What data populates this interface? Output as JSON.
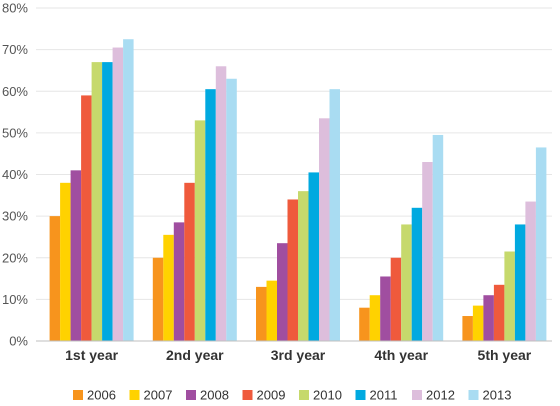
{
  "chart_data": {
    "type": "bar",
    "title": "",
    "xlabel": "",
    "ylabel": "",
    "categories": [
      "1st year",
      "2nd year",
      "3rd year",
      "4th year",
      "5th year"
    ],
    "series": [
      {
        "name": "2006",
        "color": "#f7941d",
        "values": [
          30,
          20,
          13,
          8,
          6
        ]
      },
      {
        "name": "2007",
        "color": "#ffd200",
        "values": [
          38,
          25.5,
          14.5,
          11,
          8.5
        ]
      },
      {
        "name": "2008",
        "color": "#a04ea0",
        "values": [
          41,
          28.5,
          23.5,
          15.5,
          11
        ]
      },
      {
        "name": "2009",
        "color": "#ef5a3c",
        "values": [
          59,
          38,
          34,
          20,
          13.5
        ]
      },
      {
        "name": "2010",
        "color": "#c6d96c",
        "values": [
          67,
          53,
          36,
          28,
          21.5
        ]
      },
      {
        "name": "2011",
        "color": "#00a9e0",
        "values": [
          67,
          60.5,
          40.5,
          32,
          28
        ]
      },
      {
        "name": "2012",
        "color": "#ddbedc",
        "values": [
          70.5,
          66,
          53.5,
          43,
          33.5
        ]
      },
      {
        "name": "2013",
        "color": "#a9dcf2",
        "values": [
          72.5,
          63,
          60.5,
          49.5,
          46.5
        ]
      }
    ],
    "ylim": [
      0,
      80
    ],
    "yticks": [
      0,
      10,
      20,
      30,
      40,
      50,
      60,
      70,
      80
    ],
    "ytick_labels": [
      "0%",
      "10%",
      "20%",
      "30%",
      "40%",
      "50%",
      "60%",
      "70%",
      "80%"
    ],
    "grid": true,
    "legend_position": "bottom"
  }
}
